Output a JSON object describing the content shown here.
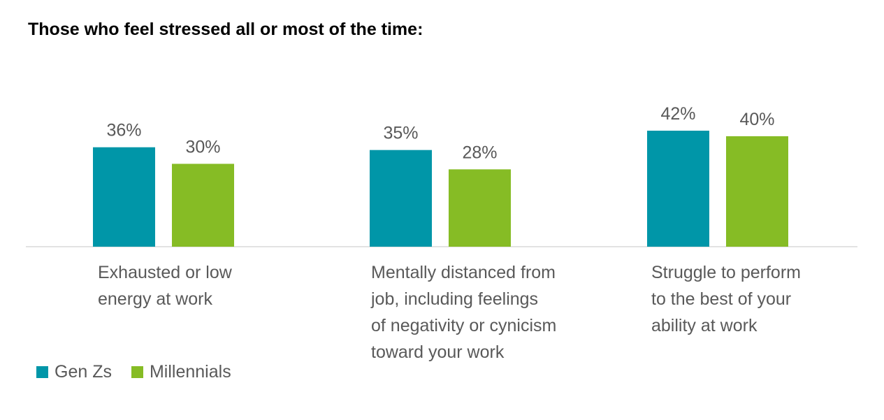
{
  "chart_data": {
    "type": "bar",
    "title": "Those who feel stressed all or most of the time:",
    "categories": [
      "Exhausted or low energy at work",
      "Mentally distanced from job, including feelings of negativity or cynicism toward your work",
      "Struggle to perform to the best of your ability at work"
    ],
    "category_lines": [
      [
        "Exhausted or low",
        "energy at work"
      ],
      [
        "Mentally distanced from",
        "job, including feelings",
        "of negativity or cynicism",
        "toward your work"
      ],
      [
        "Struggle to perform",
        "to the best of your",
        "ability at work"
      ]
    ],
    "series": [
      {
        "name": "Gen Zs",
        "values": [
          36,
          35,
          42
        ],
        "labels": [
          "36%",
          "35%",
          "42%"
        ],
        "color": "#0096A8"
      },
      {
        "name": "Millennials",
        "values": [
          30,
          28,
          40
        ],
        "labels": [
          "30%",
          "28%",
          "40%"
        ],
        "color": "#86BC25"
      }
    ],
    "xlabel": "",
    "ylabel": "",
    "ylim": [
      0,
      45
    ],
    "grid": false,
    "legend_position": "bottom-left",
    "axis_color": "#D9D9D9",
    "label_color": "#595959"
  }
}
